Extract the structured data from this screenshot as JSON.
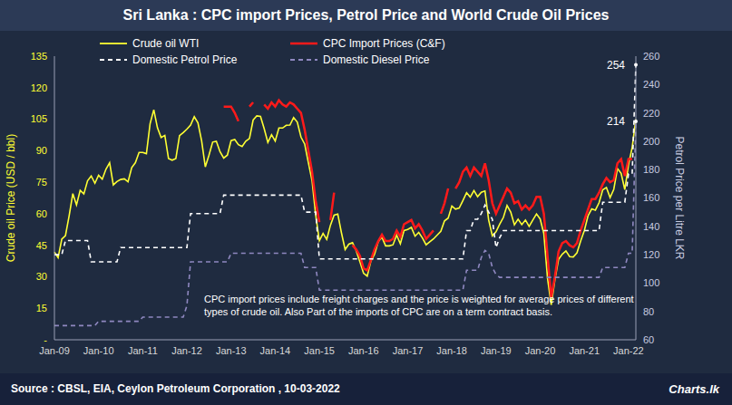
{
  "chart_data": {
    "type": "line",
    "title": "Sri Lanka : CPC import Prices, Petrol Price and World Crude Oil Prices",
    "y_label": "Crude oil Price (USD / bbl)",
    "y2_label": "Petrol Price per Litre LKR",
    "note": "CPC import prices include freight charges and the price is weighted for average prices of different types of crude oil. Also Part of the imports of CPC are on a term contract basis.",
    "source": "Source : CBSL, EIA, Ceylon Petroleum Corporation , 10-03-2022",
    "brand": "Charts.lk",
    "legend": "top",
    "grid": false,
    "ylim": [
      0,
      135
    ],
    "yticks": [
      {
        "value": 0,
        "label": "-"
      },
      15,
      30,
      45,
      60,
      75,
      90,
      105,
      120,
      135
    ],
    "y2lim": [
      60,
      260
    ],
    "y2ticks": [
      60,
      80,
      100,
      120,
      140,
      160,
      180,
      200,
      220,
      240,
      260
    ],
    "annotations": [
      {
        "label": "254",
        "value": 254,
        "axis": "y2"
      },
      {
        "label": "214",
        "value": 214,
        "axis": "y2"
      }
    ],
    "categories": [
      "Jan-09",
      null,
      null,
      null,
      null,
      null,
      null,
      null,
      null,
      null,
      null,
      null,
      "Jan-10",
      null,
      null,
      null,
      null,
      null,
      null,
      null,
      null,
      null,
      null,
      null,
      "Jan-11",
      null,
      null,
      null,
      null,
      null,
      null,
      null,
      null,
      null,
      null,
      null,
      "Jan-12",
      null,
      null,
      null,
      null,
      null,
      null,
      null,
      null,
      null,
      null,
      null,
      "Jan-13",
      null,
      null,
      null,
      null,
      null,
      null,
      null,
      null,
      null,
      null,
      null,
      "Jan-14",
      null,
      null,
      null,
      null,
      null,
      null,
      null,
      null,
      null,
      null,
      null,
      "Jan-15",
      null,
      null,
      null,
      null,
      null,
      null,
      null,
      null,
      null,
      null,
      null,
      "Jan-16",
      null,
      null,
      null,
      null,
      null,
      null,
      null,
      null,
      null,
      null,
      null,
      "Jan-17",
      null,
      null,
      null,
      null,
      null,
      null,
      null,
      null,
      null,
      null,
      null,
      "Jan-18",
      null,
      null,
      null,
      null,
      null,
      null,
      null,
      null,
      null,
      null,
      null,
      "Jan-19",
      null,
      null,
      null,
      null,
      null,
      null,
      null,
      null,
      null,
      null,
      null,
      "Jan-20",
      null,
      null,
      null,
      null,
      null,
      null,
      null,
      null,
      null,
      null,
      null,
      "Jan-21",
      null,
      null,
      null,
      null,
      null,
      null,
      null,
      null,
      null,
      null,
      null,
      "Jan-22",
      null,
      null
    ],
    "series": [
      {
        "name": "Crude oil WTI",
        "color": "#FFFF33",
        "axis": "y",
        "line_style": "solid",
        "values": [
          41.7,
          39.1,
          47.9,
          49.6,
          59.0,
          69.6,
          64.2,
          71.1,
          69.4,
          75.7,
          78.0,
          74.5,
          78.3,
          76.4,
          81.2,
          84.3,
          73.7,
          75.3,
          76.3,
          76.6,
          75.2,
          81.9,
          84.3,
          89.2,
          89.2,
          88.6,
          102.9,
          109.5,
          100.9,
          96.3,
          97.3,
          86.3,
          85.5,
          86.3,
          97.2,
          98.6,
          100.3,
          102.2,
          106.2,
          103.3,
          94.7,
          82.3,
          87.9,
          94.1,
          94.5,
          89.5,
          86.5,
          87.9,
          94.8,
          95.3,
          92.9,
          92.0,
          94.5,
          95.8,
          104.6,
          106.6,
          106.3,
          100.5,
          93.9,
          97.6,
          94.6,
          100.8,
          100.8,
          102.1,
          102.2,
          105.8,
          103.6,
          96.5,
          93.2,
          84.4,
          75.8,
          59.3,
          47.2,
          50.6,
          47.8,
          54.5,
          59.3,
          59.8,
          50.9,
          42.9,
          45.5,
          46.2,
          42.4,
          37.2,
          31.7,
          30.3,
          37.5,
          40.8,
          46.7,
          48.8,
          44.7,
          44.7,
          45.2,
          49.8,
          45.7,
          52.0,
          52.5,
          53.5,
          49.3,
          51.1,
          48.5,
          45.2,
          46.6,
          48.0,
          49.8,
          51.6,
          56.6,
          57.9,
          63.7,
          62.2,
          62.7,
          66.3,
          70.0,
          67.9,
          71.0,
          68.1,
          70.2,
          70.8,
          57.0,
          49.5,
          51.4,
          55.0,
          58.2,
          63.9,
          60.8,
          54.7,
          57.4,
          54.8,
          57.0,
          54.0,
          57.0,
          59.9,
          57.5,
          50.5,
          29.2,
          16.6,
          28.5,
          38.3,
          40.7,
          42.3,
          39.6,
          39.4,
          41.4,
          47.0,
          52.0,
          59.0,
          62.3,
          61.7,
          65.2,
          71.4,
          72.5,
          67.7,
          71.6,
          81.5,
          79.2,
          71.5,
          83.2,
          91.6,
          105
        ]
      },
      {
        "name": "CPC Import Prices (C&F)",
        "color": "#FF1A1A",
        "axis": "y",
        "line_style": "solid",
        "values": [
          null,
          null,
          null,
          null,
          null,
          null,
          null,
          null,
          null,
          null,
          null,
          null,
          null,
          null,
          null,
          null,
          null,
          null,
          null,
          null,
          null,
          null,
          null,
          null,
          null,
          null,
          null,
          null,
          null,
          null,
          null,
          null,
          null,
          null,
          null,
          null,
          null,
          null,
          null,
          null,
          null,
          null,
          null,
          null,
          null,
          null,
          111,
          111,
          111,
          108,
          104,
          null,
          null,
          111,
          113,
          null,
          null,
          112,
          110,
          113,
          111,
          114,
          112,
          111,
          113,
          112,
          110,
          108,
          100,
          90,
          80,
          66,
          56,
          null,
          null,
          57,
          70,
          null,
          null,
          null,
          null,
          45,
          43,
          40,
          34,
          33,
          38,
          43,
          47,
          50,
          47,
          47,
          48,
          52,
          49,
          55,
          56,
          57,
          53,
          55,
          52,
          48,
          50,
          52,
          null,
          60,
          65,
          72,
          null,
          72,
          75,
          80,
          82,
          78,
          82,
          80,
          78,
          84,
          76,
          65,
          60,
          64,
          68,
          72,
          70,
          65,
          66,
          62,
          64,
          62,
          64,
          68,
          68,
          60,
          40,
          20,
          30,
          42,
          46,
          47,
          45,
          44,
          46,
          52,
          57,
          62,
          67,
          67,
          70,
          74,
          77,
          75,
          76,
          84,
          86,
          78,
          86,
          86,
          null
        ]
      },
      {
        "name": "Domestic Petrol Price",
        "color": "#FFFFFF",
        "axis": "y2",
        "line_style": "dashed",
        "values": [
          120,
          120,
          120,
          130,
          130,
          130,
          130,
          130,
          130,
          130,
          115,
          115,
          115,
          115,
          115,
          115,
          115,
          115,
          125,
          125,
          125,
          125,
          125,
          125,
          125,
          125,
          125,
          125,
          125,
          125,
          125,
          125,
          125,
          125,
          125,
          125,
          125,
          149,
          149,
          149,
          149,
          149,
          149,
          149,
          149,
          149,
          162,
          162,
          162,
          162,
          162,
          162,
          162,
          162,
          162,
          162,
          162,
          162,
          162,
          162,
          162,
          162,
          162,
          162,
          162,
          162,
          162,
          162,
          150,
          150,
          150,
          150,
          117,
          117,
          117,
          117,
          117,
          117,
          117,
          117,
          117,
          117,
          117,
          117,
          117,
          117,
          117,
          117,
          117,
          117,
          117,
          117,
          117,
          117,
          117,
          117,
          117,
          117,
          117,
          117,
          117,
          117,
          117,
          117,
          117,
          117,
          117,
          117,
          117,
          117,
          117,
          117,
          137,
          137,
          145,
          145,
          149,
          155,
          150,
          145,
          125,
          132,
          137,
          137,
          137,
          137,
          137,
          137,
          137,
          137,
          137,
          137,
          137,
          137,
          137,
          137,
          137,
          137,
          137,
          137,
          137,
          137,
          137,
          137,
          137,
          137,
          137,
          137,
          137,
          157,
          157,
          157,
          157,
          157,
          157,
          157,
          177,
          177,
          254
        ]
      },
      {
        "name": "Domestic Diesel Price",
        "color": "#8F88C0",
        "axis": "y2",
        "line_style": "dashed",
        "values": [
          70,
          70,
          70,
          70,
          70,
          70,
          70,
          70,
          70,
          70,
          70,
          70,
          73,
          73,
          73,
          73,
          73,
          73,
          73,
          73,
          73,
          73,
          73,
          73,
          76,
          76,
          76,
          76,
          76,
          76,
          76,
          76,
          76,
          76,
          76,
          76,
          84,
          115,
          115,
          115,
          115,
          115,
          115,
          115,
          115,
          115,
          115,
          115,
          121,
          121,
          121,
          121,
          121,
          121,
          121,
          121,
          121,
          121,
          121,
          121,
          121,
          121,
          121,
          121,
          121,
          121,
          121,
          121,
          111,
          111,
          111,
          111,
          95,
          95,
          95,
          95,
          95,
          95,
          95,
          95,
          95,
          95,
          95,
          95,
          95,
          95,
          95,
          95,
          95,
          95,
          95,
          95,
          95,
          95,
          95,
          95,
          95,
          95,
          95,
          95,
          95,
          95,
          95,
          95,
          95,
          95,
          95,
          95,
          95,
          95,
          95,
          95,
          109,
          109,
          109,
          109,
          118,
          123,
          121,
          111,
          106,
          104,
          104,
          104,
          104,
          104,
          104,
          104,
          104,
          104,
          104,
          104,
          104,
          104,
          104,
          104,
          104,
          104,
          104,
          104,
          104,
          104,
          104,
          104,
          104,
          104,
          104,
          104,
          104,
          111,
          111,
          111,
          111,
          111,
          111,
          111,
          121,
          121,
          214
        ]
      }
    ]
  }
}
